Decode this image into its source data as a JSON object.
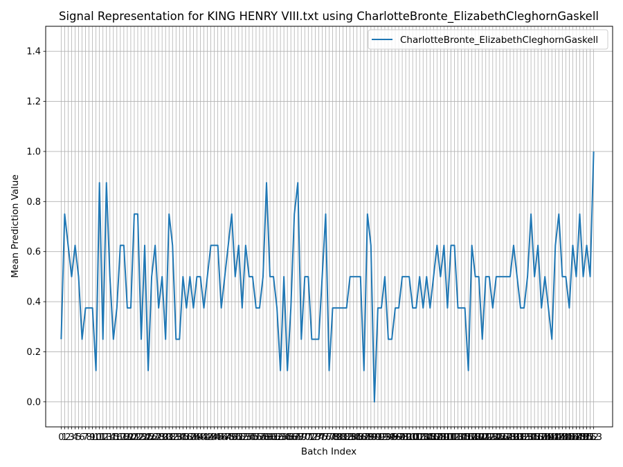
{
  "chart_data": {
    "type": "line",
    "title": "Signal Representation for KING HENRY VIII.txt using CharlotteBronte_ElizabethCleghornGaskell",
    "xlabel": "Batch Index",
    "ylabel": "Mean Prediction Value",
    "xlim": [
      -4.45,
      158.45
    ],
    "ylim": [
      -0.1,
      1.5
    ],
    "yticks": [
      0.0,
      0.2,
      0.4,
      0.6,
      0.8,
      1.0,
      1.2,
      1.4
    ],
    "ytick_labels": [
      "0.0",
      "0.2",
      "0.4",
      "0.6",
      "0.8",
      "1.0",
      "1.2",
      "1.4"
    ],
    "grid": true,
    "legend_position": "top-right",
    "series": [
      {
        "name": "CharlotteBronte_ElizabethCleghornGaskell",
        "color": "#1f77b4",
        "values": [
          0.25,
          0.75,
          0.625,
          0.5,
          0.625,
          0.5,
          0.25,
          0.375,
          0.375,
          0.375,
          0.125,
          0.875,
          0.25,
          0.875,
          0.5,
          0.25,
          0.375,
          0.625,
          0.625,
          0.375,
          0.375,
          0.75,
          0.75,
          0.25,
          0.625,
          0.125,
          0.5,
          0.625,
          0.375,
          0.5,
          0.25,
          0.75,
          0.625,
          0.25,
          0.25,
          0.5,
          0.375,
          0.5,
          0.375,
          0.5,
          0.5,
          0.375,
          0.5,
          0.625,
          0.625,
          0.625,
          0.375,
          0.5,
          0.625,
          0.75,
          0.5,
          0.625,
          0.375,
          0.625,
          0.5,
          0.5,
          0.375,
          0.375,
          0.5,
          0.875,
          0.5,
          0.5,
          0.375,
          0.125,
          0.5,
          0.125,
          0.375,
          0.75,
          0.875,
          0.25,
          0.5,
          0.5,
          0.25,
          0.25,
          0.25,
          0.5,
          0.75,
          0.125,
          0.375,
          0.375,
          0.375,
          0.375,
          0.375,
          0.5,
          0.5,
          0.5,
          0.5,
          0.125,
          0.75,
          0.625,
          0.0,
          0.375,
          0.375,
          0.5,
          0.25,
          0.25,
          0.375,
          0.375,
          0.5,
          0.5,
          0.5,
          0.375,
          0.375,
          0.5,
          0.375,
          0.5,
          0.375,
          0.5,
          0.625,
          0.5,
          0.625,
          0.375,
          0.625,
          0.625,
          0.375,
          0.375,
          0.375,
          0.125,
          0.625,
          0.5,
          0.5,
          0.25,
          0.5,
          0.5,
          0.375,
          0.5,
          0.5,
          0.5,
          0.5,
          0.5,
          0.625,
          0.5,
          0.375,
          0.375,
          0.5,
          0.75,
          0.5,
          0.625,
          0.375,
          0.5,
          0.375,
          0.25,
          0.625,
          0.75,
          0.5,
          0.5,
          0.375,
          0.625,
          0.5,
          0.75,
          0.5,
          0.625,
          0.5,
          1.0
        ]
      }
    ]
  }
}
